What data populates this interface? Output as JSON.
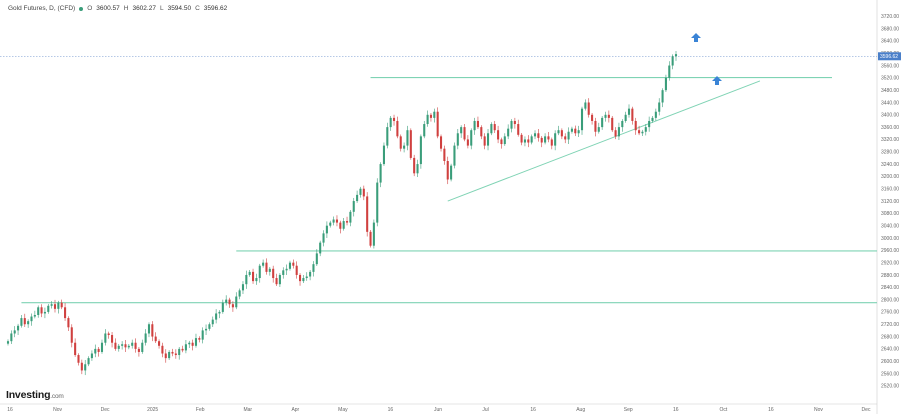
{
  "header": {
    "title": "Gold Futures, D, (CFD)",
    "open_label": "O",
    "open": "3600.57",
    "high_label": "H",
    "high": "3602.27",
    "low_label": "L",
    "low": "3594.50",
    "close_label": "C",
    "close": "3596.62"
  },
  "branding": {
    "name": "Investing",
    "domain": ".com"
  },
  "colors": {
    "up": "#3a9d7a",
    "down": "#d0403f",
    "line": "#7fd3b4",
    "arrow": "#3a84d6",
    "pricebox": "#4a7fc9"
  },
  "icons": [
    "up-arrow-icon",
    "up-arrow-icon"
  ],
  "chart_data": {
    "type": "candlestick",
    "ylim": [
      2500,
      3750
    ],
    "y_ticks": [
      "3720.00",
      "3680.00",
      "3640.00",
      "3600.00",
      "3560.00",
      "3520.00",
      "3480.00",
      "3440.00",
      "3400.00",
      "3360.00",
      "3320.00",
      "3280.00",
      "3240.00",
      "3200.00",
      "3160.00",
      "3120.00",
      "3080.00",
      "3040.00",
      "3000.00",
      "2960.00",
      "2920.00",
      "2880.00",
      "2840.00",
      "2800.00",
      "2760.00",
      "2720.00",
      "2680.00",
      "2640.00",
      "2600.00",
      "2560.00",
      "2520.00"
    ],
    "x_ticks": [
      "16",
      "Nov",
      "Dec",
      "2025",
      "Feb",
      "Mar",
      "Apr",
      "May",
      "16",
      "Jun",
      "Jul",
      "16",
      "Aug",
      "Sep",
      "16",
      "Oct",
      "16",
      "Nov",
      "Dec"
    ],
    "last_price": "3596.62",
    "closes": [
      2665,
      2690,
      2700,
      2715,
      2740,
      2720,
      2730,
      2745,
      2750,
      2775,
      2755,
      2760,
      2780,
      2785,
      2770,
      2790,
      2775,
      2740,
      2710,
      2660,
      2620,
      2595,
      2570,
      2590,
      2610,
      2625,
      2640,
      2630,
      2660,
      2690,
      2685,
      2660,
      2640,
      2650,
      2655,
      2645,
      2650,
      2660,
      2640,
      2630,
      2660,
      2690,
      2720,
      2680,
      2665,
      2650,
      2625,
      2610,
      2630,
      2625,
      2620,
      2640,
      2635,
      2655,
      2660,
      2650,
      2675,
      2670,
      2700,
      2705,
      2720,
      2735,
      2755,
      2760,
      2790,
      2800,
      2785,
      2775,
      2810,
      2830,
      2850,
      2880,
      2890,
      2860,
      2870,
      2910,
      2920,
      2890,
      2900,
      2870,
      2850,
      2880,
      2895,
      2900,
      2920,
      2910,
      2880,
      2860,
      2870,
      2875,
      2890,
      2915,
      2950,
      2985,
      3015,
      3040,
      3050,
      3060,
      3050,
      3030,
      3055,
      3050,
      3085,
      3120,
      3140,
      3160,
      3135,
      3020,
      2975,
      3050,
      3180,
      3240,
      3300,
      3360,
      3390,
      3380,
      3330,
      3290,
      3300,
      3350,
      3260,
      3210,
      3240,
      3330,
      3370,
      3400,
      3390,
      3410,
      3330,
      3290,
      3250,
      3190,
      3235,
      3300,
      3340,
      3360,
      3320,
      3300,
      3350,
      3380,
      3360,
      3330,
      3300,
      3340,
      3370,
      3350,
      3320,
      3305,
      3330,
      3355,
      3380,
      3370,
      3335,
      3310,
      3320,
      3310,
      3330,
      3340,
      3325,
      3310,
      3330,
      3320,
      3300,
      3340,
      3350,
      3330,
      3320,
      3345,
      3355,
      3340,
      3350,
      3420,
      3440,
      3400,
      3380,
      3345,
      3360,
      3390,
      3400,
      3390,
      3350,
      3330,
      3360,
      3380,
      3400,
      3420,
      3380,
      3350,
      3340,
      3345,
      3360,
      3380,
      3390,
      3410,
      3440,
      3480,
      3520,
      3560,
      3590,
      3597
    ],
    "horizontal_levels": [
      3521,
      2958,
      2790,
      3590
    ],
    "uptrend_line": {
      "from": {
        "index": 131,
        "value": 3120
      },
      "to": {
        "index": 224,
        "value": 3510
      }
    }
  }
}
